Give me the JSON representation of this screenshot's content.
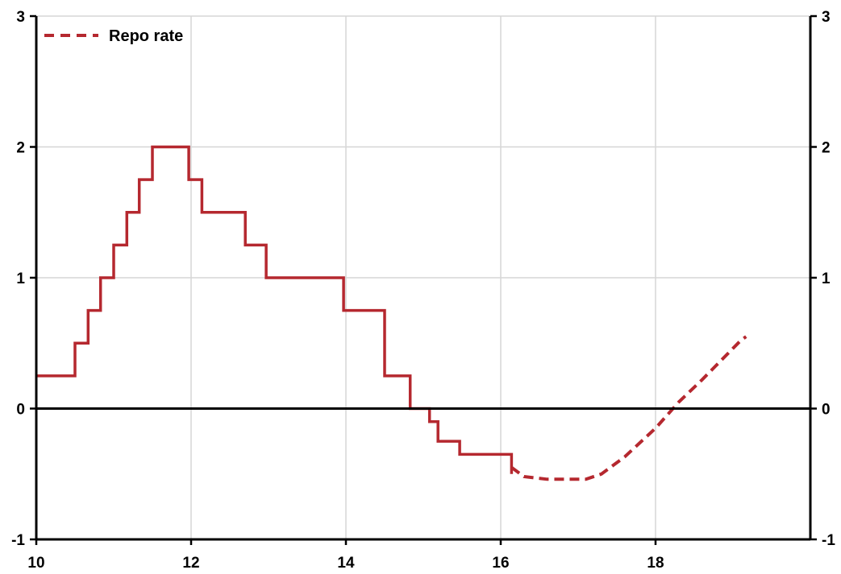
{
  "chart_data": {
    "type": "line",
    "title": "",
    "xlabel": "",
    "ylabel": "",
    "xlim": [
      10,
      20
    ],
    "ylim": [
      -1,
      3
    ],
    "x_ticks": [
      "10",
      "12",
      "14",
      "16",
      "18"
    ],
    "y_ticks": [
      "-1",
      "0",
      "1",
      "2",
      "3"
    ],
    "grid": true,
    "legend": {
      "position": "top-left",
      "entries": [
        "Repo rate"
      ]
    },
    "colors": {
      "series": "#b5282f",
      "axis": "#000000",
      "grid": "#d6d6d6"
    },
    "series": [
      {
        "name": "Repo rate",
        "style": "step",
        "points": [
          [
            10.0,
            0.25
          ],
          [
            10.5,
            0.25
          ],
          [
            10.5,
            0.5
          ],
          [
            10.67,
            0.5
          ],
          [
            10.67,
            0.75
          ],
          [
            10.83,
            0.75
          ],
          [
            10.83,
            1.0
          ],
          [
            11.0,
            1.0
          ],
          [
            11.0,
            1.25
          ],
          [
            11.17,
            1.25
          ],
          [
            11.17,
            1.5
          ],
          [
            11.33,
            1.5
          ],
          [
            11.33,
            1.75
          ],
          [
            11.5,
            1.75
          ],
          [
            11.5,
            2.0
          ],
          [
            11.97,
            2.0
          ],
          [
            11.97,
            1.75
          ],
          [
            12.14,
            1.75
          ],
          [
            12.14,
            1.5
          ],
          [
            12.7,
            1.5
          ],
          [
            12.7,
            1.25
          ],
          [
            12.97,
            1.25
          ],
          [
            12.97,
            1.0
          ],
          [
            13.97,
            1.0
          ],
          [
            13.97,
            0.75
          ],
          [
            14.5,
            0.75
          ],
          [
            14.5,
            0.25
          ],
          [
            14.83,
            0.25
          ],
          [
            14.83,
            0.0
          ],
          [
            15.08,
            0.0
          ],
          [
            15.08,
            -0.1
          ],
          [
            15.19,
            -0.1
          ],
          [
            15.19,
            -0.25
          ],
          [
            15.47,
            -0.25
          ],
          [
            15.47,
            -0.35
          ],
          [
            16.14,
            -0.35
          ],
          [
            16.14,
            -0.5
          ]
        ]
      },
      {
        "name": "Repo rate",
        "style": "dashed",
        "points": [
          [
            16.14,
            -0.45
          ],
          [
            16.3,
            -0.52
          ],
          [
            16.6,
            -0.54
          ],
          [
            17.1,
            -0.54
          ],
          [
            17.3,
            -0.5
          ],
          [
            17.6,
            -0.37
          ],
          [
            18.0,
            -0.15
          ],
          [
            18.3,
            0.05
          ],
          [
            18.6,
            0.22
          ],
          [
            19.1,
            0.52
          ],
          [
            19.17,
            0.55
          ]
        ]
      }
    ]
  }
}
